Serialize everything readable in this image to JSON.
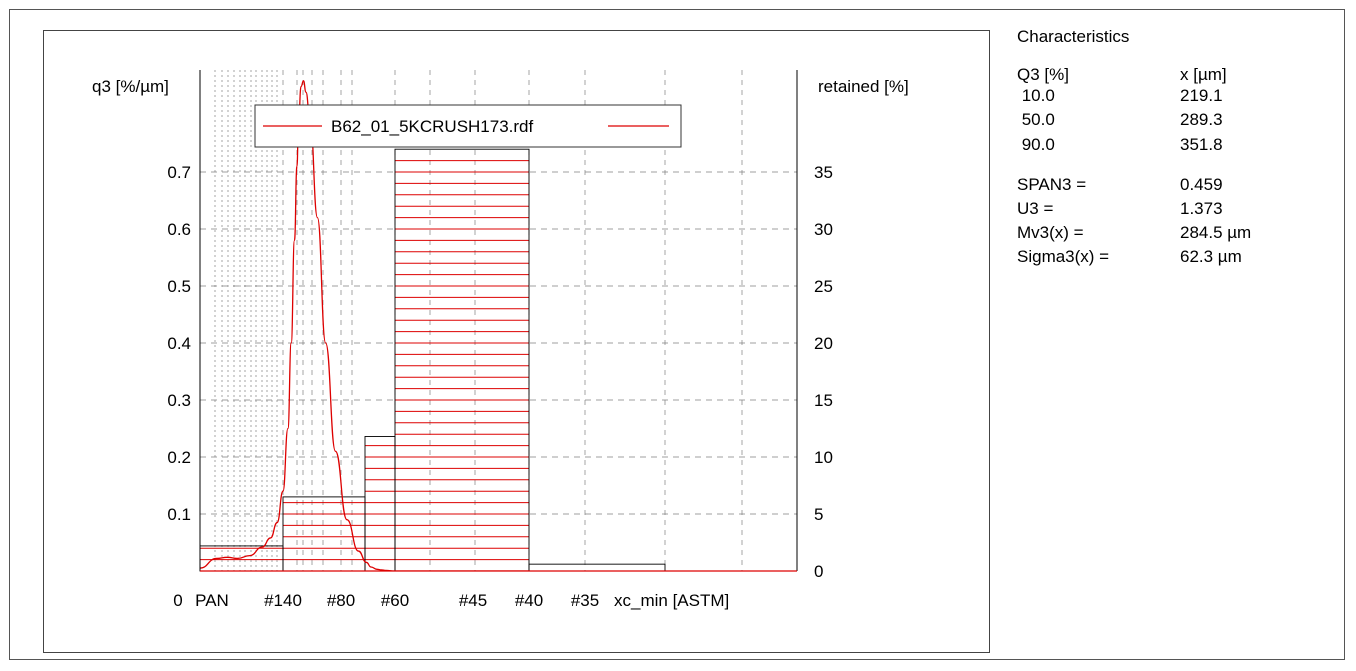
{
  "chart_data": {
    "type": "bar",
    "series_label": "B62_01_5KCRUSH173.rdf",
    "y_left_label": "q3 [%/µm]",
    "y_right_label": "retained [%]",
    "x_label": "xc_min [ASTM]",
    "x_tick_labels": [
      "0",
      "PAN",
      "#140",
      "#80",
      "#60",
      "#45",
      "#40",
      "#35"
    ],
    "y_left_ticks": [
      "0.1",
      "0.2",
      "0.3",
      "0.4",
      "0.5",
      "0.6",
      "0.7"
    ],
    "y_right_ticks": [
      "0",
      "5",
      "10",
      "15",
      "20",
      "25",
      "30",
      "35"
    ],
    "ylim_right": [
      0,
      40
    ],
    "legend_position": "top",
    "grid": true,
    "colors": {
      "histogram": "#dd0000",
      "curve": "#dd0000",
      "outline": "#000000",
      "grid": "#808080"
    },
    "histogram": [
      {
        "bin": "PAN–#140",
        "retained": 2.2
      },
      {
        "bin": "#140–#80",
        "retained": 6.5
      },
      {
        "bin": "#80–#60",
        "retained": 11.8
      },
      {
        "bin": "#60–#40",
        "retained": 37.0
      },
      {
        "bin": "#40–#35",
        "retained": 0.6
      },
      {
        "bin": "#35–end",
        "retained": 0.0
      }
    ],
    "density_curve": {
      "x": [
        0,
        0.2,
        0.33,
        0.45,
        0.6,
        0.75,
        0.85,
        0.93,
        1.0,
        1.06,
        1.1,
        1.14,
        1.17,
        1.19,
        1.22,
        1.25,
        1.28,
        1.33,
        1.42,
        1.52,
        1.64,
        1.78,
        1.92,
        2.05,
        2.2,
        2.4,
        2.55,
        2.7,
        3.0,
        3.5,
        4.0
      ],
      "q3": [
        0.005,
        0.022,
        0.024,
        0.022,
        0.027,
        0.042,
        0.058,
        0.085,
        0.14,
        0.25,
        0.4,
        0.58,
        0.71,
        0.79,
        0.85,
        0.86,
        0.84,
        0.79,
        0.62,
        0.4,
        0.21,
        0.09,
        0.035,
        0.015,
        0.007,
        0.003,
        0.002,
        0.001,
        0.0,
        0.0,
        0.0
      ]
    }
  },
  "characteristics": {
    "title": "Characteristics",
    "header": {
      "label": "Q3 [%]",
      "value": "x [µm]"
    },
    "quantiles": [
      {
        "label": " 10.0",
        "value": "219.1"
      },
      {
        "label": " 50.0",
        "value": "289.3"
      },
      {
        "label": " 90.0",
        "value": "351.8"
      }
    ],
    "stats": [
      {
        "label": "SPAN3 =",
        "value": "0.459"
      },
      {
        "label": "U3 =",
        "value": "1.373"
      },
      {
        "label": "Mv3(x) =",
        "value": "284.5 µm"
      },
      {
        "label": "Sigma3(x) =",
        "value": "62.3 µm"
      }
    ]
  }
}
